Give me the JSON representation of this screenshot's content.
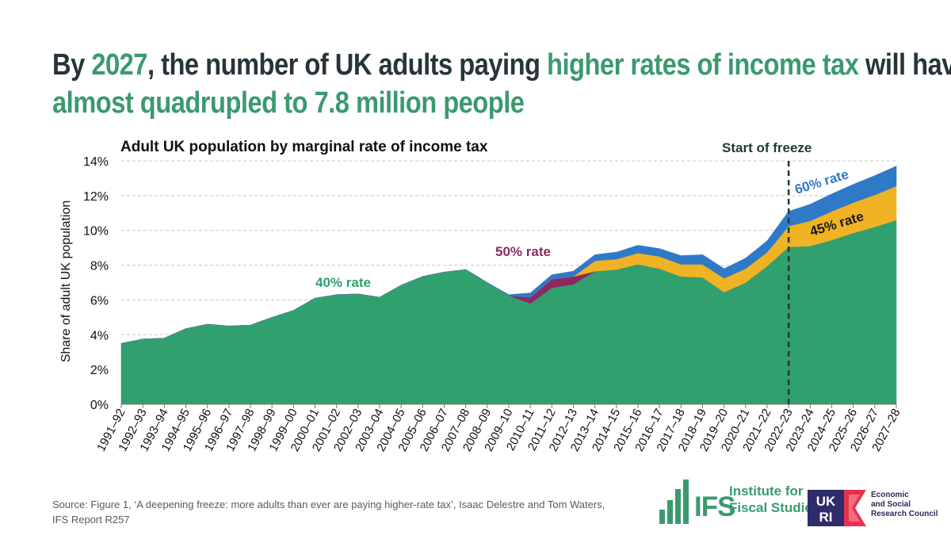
{
  "headline": {
    "p1": "By ",
    "p2": "2027",
    "p3": ", the number of UK adults paying ",
    "p4": "higher rates of income tax",
    "p5": " will have",
    "p6": "almost quadrupled to 7.8 million people"
  },
  "colors": {
    "green": "#31a06f",
    "purple": "#8c2a5f",
    "gold": "#f0b323",
    "blue": "#2f7ac7",
    "headline_accent": "#3a9a6e",
    "headline_text": "#27353a"
  },
  "chart_data": {
    "type": "area",
    "stacked": true,
    "title": "Adult UK population by marginal rate of income tax",
    "xlabel": "",
    "ylabel": "Share of adult UK population",
    "ylim": [
      0,
      14
    ],
    "yticks": [
      "0%",
      "2%",
      "4%",
      "6%",
      "8%",
      "10%",
      "12%",
      "14%"
    ],
    "grid": "horizontal dashed",
    "categories": [
      "1991–92",
      "1992–93",
      "1993–94",
      "1994–95",
      "1995–96",
      "1996–97",
      "1997–98",
      "1998–99",
      "1999–00",
      "2000–01",
      "2001–02",
      "2002–03",
      "2003–04",
      "2004–05",
      "2005–06",
      "2006–07",
      "2007–08",
      "2008–09",
      "2009–10",
      "2010–11",
      "2011–12",
      "2012–13",
      "2013–14",
      "2014–15",
      "2015–16",
      "2016–17",
      "2017–18",
      "2018–19",
      "2019–20",
      "2020–21",
      "2021–22",
      "2022–23",
      "2023–24",
      "2024–25",
      "2025–26",
      "2026–27",
      "2027–28"
    ],
    "series": [
      {
        "name": "40% rate",
        "color": "#31a06f",
        "values": [
          3.5,
          3.75,
          3.8,
          4.35,
          4.6,
          4.5,
          4.55,
          5.0,
          5.4,
          6.1,
          6.3,
          6.35,
          6.15,
          6.85,
          7.35,
          7.6,
          7.75,
          7.0,
          6.25,
          5.8,
          6.7,
          6.9,
          7.65,
          7.75,
          8.05,
          7.8,
          7.35,
          7.3,
          6.45,
          7.0,
          7.95,
          9.05,
          9.1,
          9.45,
          9.85,
          10.2,
          10.6
        ]
      },
      {
        "name": "50% rate",
        "color": "#8c2a5f",
        "values": [
          0,
          0,
          0,
          0,
          0,
          0,
          0,
          0,
          0,
          0,
          0,
          0,
          0,
          0,
          0,
          0,
          0,
          0,
          0,
          0.35,
          0.5,
          0.45,
          0,
          0,
          0,
          0,
          0,
          0,
          0,
          0,
          0,
          0,
          0,
          0,
          0,
          0,
          0
        ]
      },
      {
        "name": "45% rate",
        "color": "#f0b323",
        "values": [
          0,
          0,
          0,
          0,
          0,
          0,
          0,
          0,
          0,
          0,
          0,
          0,
          0,
          0,
          0,
          0,
          0,
          0,
          0,
          0,
          0,
          0,
          0.6,
          0.6,
          0.65,
          0.7,
          0.7,
          0.75,
          0.8,
          0.8,
          0.8,
          1.2,
          1.45,
          1.65,
          1.75,
          1.85,
          1.95
        ]
      },
      {
        "name": "60% rate",
        "color": "#2f7ac7",
        "values": [
          0,
          0,
          0,
          0,
          0,
          0,
          0,
          0,
          0,
          0,
          0,
          0,
          0,
          0,
          0,
          0,
          0,
          0,
          0.05,
          0.25,
          0.25,
          0.3,
          0.35,
          0.4,
          0.45,
          0.45,
          0.5,
          0.55,
          0.55,
          0.6,
          0.65,
          0.85,
          0.95,
          1.0,
          1.05,
          1.1,
          1.15
        ]
      }
    ],
    "annotations": [
      {
        "text": "40% rate",
        "series": "40% rate"
      },
      {
        "text": "50% rate",
        "series": "50% rate"
      },
      {
        "text": "45% rate",
        "series": "45% rate"
      },
      {
        "text": "60% rate",
        "series": "60% rate"
      },
      {
        "text": "Start of freeze",
        "at": "2022–23"
      }
    ]
  },
  "footer": {
    "source_line1": "Source: Figure 1, ‘A deepening freeze: more adults than ever are paying higher-rate tax’, Isaac Delestre and Tom Waters,",
    "source_line2": "IFS Report R257",
    "ifs_mark": "IFS",
    "ifs_line1": "Institute for",
    "ifs_line2": "Fiscal Studies",
    "ukri_line1": "UK",
    "ukri_line2": "RI",
    "esrc_line1": "Economic",
    "esrc_line2": "and Social",
    "esrc_line3": "Research Council"
  }
}
